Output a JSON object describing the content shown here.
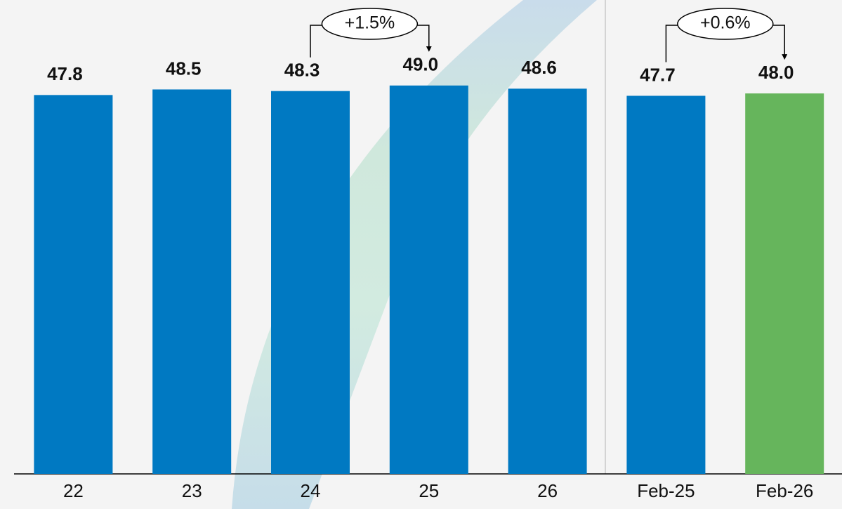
{
  "chart_data": {
    "type": "bar",
    "categories": [
      "22",
      "23",
      "24",
      "25",
      "26",
      "Feb-25",
      "Feb-26"
    ],
    "values": [
      47.8,
      48.5,
      48.3,
      49.0,
      48.6,
      47.7,
      48.0
    ],
    "value_labels": [
      "47.8",
      "48.5",
      "48.3",
      "49.0",
      "48.6",
      "47.7",
      "48.0"
    ],
    "colors": [
      "#0079c2",
      "#0079c2",
      "#0079c2",
      "#0079c2",
      "#0079c2",
      "#0079c2",
      "#66b55c"
    ],
    "ylim": [
      0,
      50
    ],
    "annotations": [
      {
        "text": "+1.5%",
        "from": "24",
        "to": "25"
      },
      {
        "text": "+0.6%",
        "from": "Feb-25",
        "to": "Feb-26"
      }
    ]
  }
}
